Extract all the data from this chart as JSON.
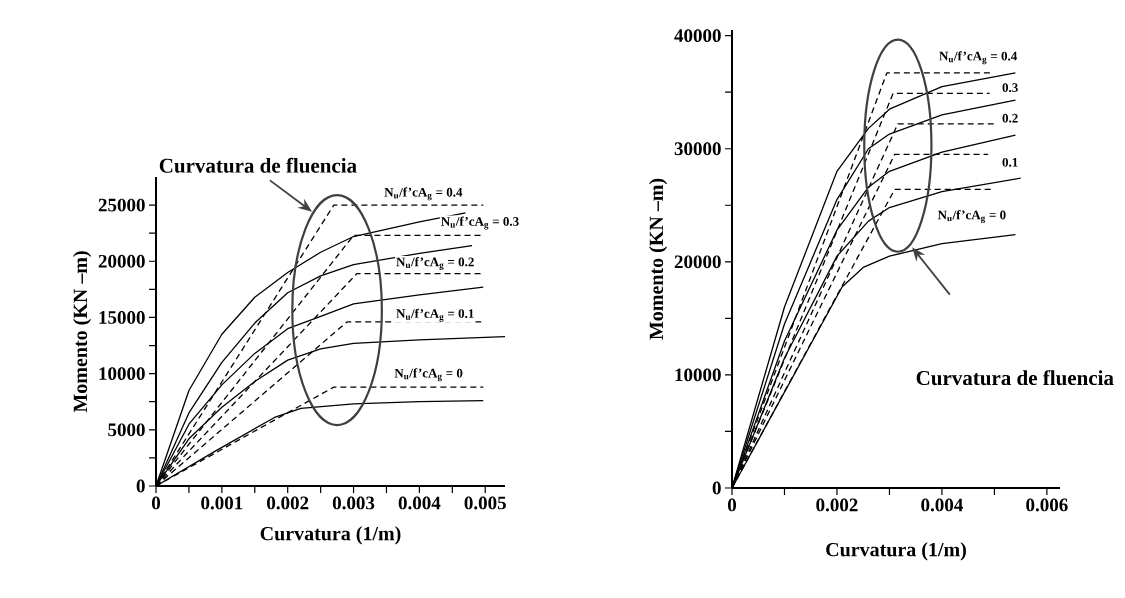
{
  "chart_data": [
    {
      "type": "line",
      "xlabel": "Curvatura (1/m)",
      "ylabel": "Momento (KN –m)",
      "xlim": [
        0,
        0.0053
      ],
      "ylim": [
        0,
        27500
      ],
      "xticks": [
        0,
        {
          "value": 0.0005,
          "label": null
        },
        0.001,
        {
          "value": 0.0015,
          "label": null
        },
        0.002,
        {
          "value": 0.0025,
          "label": null
        },
        0.003,
        {
          "value": 0.0035,
          "label": null
        },
        0.004,
        {
          "value": 0.0045,
          "label": null
        },
        0.005
      ],
      "yticks": [
        0,
        {
          "value": 2500,
          "label": null
        },
        5000,
        {
          "value": 7500,
          "label": null
        },
        10000,
        {
          "value": 12500,
          "label": null
        },
        15000,
        {
          "value": 17500,
          "label": null
        },
        20000,
        {
          "value": 22500,
          "label": null
        },
        25000
      ],
      "series": [
        {
          "color": "#000000",
          "line_style": "solid",
          "x": [
            0,
            0.0009,
            0.0018,
            0.0022,
            0.003,
            0.004,
            0.00497
          ],
          "values": [
            0,
            3100,
            6100,
            6900,
            7300,
            7500,
            7600
          ]
        },
        {
          "color": "#000000",
          "line_style": "dashed",
          "x": [
            0,
            0.0027,
            0.00497
          ],
          "values": [
            0,
            8800,
            8800
          ]
        },
        {
          "color": "#000000",
          "line_style": "solid",
          "x": [
            0,
            0.0005,
            0.001,
            0.0015,
            0.002,
            0.0025,
            0.003,
            0.004,
            0.0053
          ],
          "values": [
            0,
            4200,
            7000,
            9300,
            11200,
            12200,
            12700,
            13000,
            13300
          ]
        },
        {
          "color": "#000000",
          "line_style": "dashed",
          "x": [
            0,
            0.0029,
            0.00497
          ],
          "values": [
            0,
            14600,
            14600
          ]
        },
        {
          "color": "#000000",
          "line_style": "solid",
          "x": [
            0,
            0.0005,
            0.001,
            0.0015,
            0.002,
            0.0025,
            0.003,
            0.004,
            0.00497
          ],
          "values": [
            0,
            5500,
            9000,
            11800,
            14000,
            15100,
            16200,
            17000,
            17700
          ]
        },
        {
          "color": "#000000",
          "line_style": "dashed",
          "x": [
            0,
            0.00305,
            0.00497
          ],
          "values": [
            0,
            18900,
            18900
          ]
        },
        {
          "color": "#000000",
          "line_style": "solid",
          "x": [
            0,
            0.0005,
            0.001,
            0.0015,
            0.002,
            0.0025,
            0.003,
            0.004,
            0.0048
          ],
          "values": [
            0,
            6500,
            11000,
            14500,
            17200,
            18700,
            19700,
            20700,
            21400
          ]
        },
        {
          "color": "#000000",
          "line_style": "dashed",
          "x": [
            0,
            0.003,
            0.00497
          ],
          "values": [
            0,
            22300,
            22300
          ]
        },
        {
          "color": "#000000",
          "line_style": "solid",
          "x": [
            0,
            0.0005,
            0.001,
            0.0015,
            0.002,
            0.0025,
            0.003,
            0.004,
            0.0047
          ],
          "values": [
            0,
            8500,
            13500,
            16800,
            19000,
            20800,
            22200,
            23500,
            24300
          ]
        },
        {
          "color": "#000000",
          "line_style": "dashed",
          "x": [
            0,
            0.0027,
            0.00497
          ],
          "values": [
            0,
            25000,
            25000
          ]
        }
      ],
      "annotations": [
        "Curvatura de fluencia",
        "N$_{u}$/f’cA$_{g}$ = 0.4",
        "N$_{u}$/f’cA$_{g}$ = 0.3",
        "N$_{u}$/f’cA$_{g}$ = 0.2",
        "N$_{u}$/f’cA$_{g}$ = 0.1",
        "N$_{u}$/f’cA$_{g}$ = 0"
      ]
    },
    {
      "type": "line",
      "xlabel": "Curvatura (1/m)",
      "ylabel": "Momento (KN –m)",
      "xlim": [
        0,
        0.00625
      ],
      "ylim": [
        0,
        40500
      ],
      "xticks": [
        0,
        {
          "value": 0.001,
          "label": null
        },
        0.002,
        {
          "value": 0.003,
          "label": null
        },
        0.004,
        {
          "value": 0.005,
          "label": null
        },
        0.006
      ],
      "yticks": [
        0,
        {
          "value": 5000,
          "label": null
        },
        10000,
        {
          "value": 15000,
          "label": null
        },
        20000,
        {
          "value": 25000,
          "label": null
        },
        30000,
        {
          "value": 35000,
          "label": null
        },
        40000
      ],
      "series": [
        {
          "color": "#000000",
          "line_style": "solid",
          "x": [
            0,
            0.0021,
            0.0025,
            0.003,
            0.004,
            0.0054
          ],
          "values": [
            0,
            17800,
            19500,
            20500,
            21600,
            22400
          ]
        },
        {
          "color": "#000000",
          "line_style": "dashed",
          "x": [
            0,
            0.0031,
            0.00497
          ],
          "values": [
            0,
            26400,
            26400
          ]
        },
        {
          "color": "#000000",
          "line_style": "solid",
          "x": [
            0,
            0.001,
            0.002,
            0.0026,
            0.003,
            0.004,
            0.0055
          ],
          "values": [
            0,
            11500,
            20500,
            23600,
            24800,
            26200,
            27400
          ]
        },
        {
          "color": "#000000",
          "line_style": "dashed",
          "x": [
            0,
            0.0031,
            0.00488
          ],
          "values": [
            0,
            29500,
            29500
          ]
        },
        {
          "color": "#000000",
          "line_style": "solid",
          "x": [
            0,
            0.001,
            0.002,
            0.0026,
            0.003,
            0.004,
            0.0054
          ],
          "values": [
            0,
            13000,
            22800,
            26600,
            28000,
            29700,
            31200
          ]
        },
        {
          "color": "#000000",
          "line_style": "dashed",
          "x": [
            0,
            0.00316,
            0.005
          ],
          "values": [
            0,
            32200,
            32200
          ]
        },
        {
          "color": "#000000",
          "line_style": "solid",
          "x": [
            0,
            0.001,
            0.002,
            0.0026,
            0.003,
            0.004,
            0.0054
          ],
          "values": [
            0,
            14500,
            25500,
            30000,
            31300,
            33000,
            34300
          ]
        },
        {
          "color": "#000000",
          "line_style": "dashed",
          "x": [
            0,
            0.00307,
            0.00491
          ],
          "values": [
            0,
            34900,
            34900
          ]
        },
        {
          "color": "#000000",
          "line_style": "solid",
          "x": [
            0,
            0.001,
            0.002,
            0.0026,
            0.003,
            0.004,
            0.0054
          ],
          "values": [
            0,
            16000,
            28000,
            31800,
            33500,
            35500,
            36700
          ]
        },
        {
          "color": "#000000",
          "line_style": "dashed",
          "x": [
            0,
            0.00295,
            0.00497
          ],
          "values": [
            0,
            36700,
            36700
          ]
        }
      ],
      "annotations": [
        "Curvatura de fluencia",
        "N$_{u}$/f’cA$_{g}$ = 0.4",
        "0.3",
        "0.2",
        "0.1",
        "N$_{u}$/f’cA$_{g}$ = 0"
      ]
    }
  ]
}
